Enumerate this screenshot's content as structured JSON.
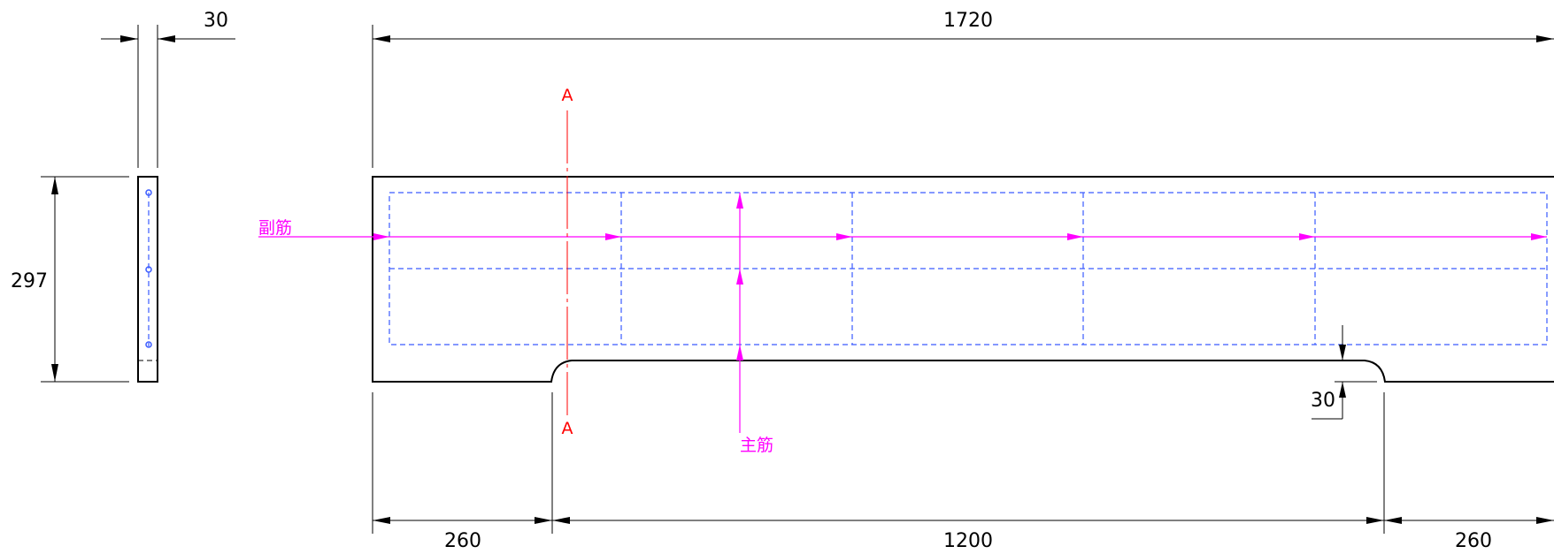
{
  "dimensions": {
    "overall_length": "1720",
    "height": "297",
    "thickness": "30",
    "left_end": "260",
    "middle_span": "1200",
    "right_end": "260",
    "notch_depth": "30"
  },
  "labels": {
    "secondary_rebar": "副筋",
    "main_rebar": "主筋",
    "section_top": "A",
    "section_bottom": "A"
  },
  "colors": {
    "outline": "#000000",
    "rebar": "#3a5bff",
    "rebar_label": "#ff00ff",
    "section_line": "#ff0000"
  }
}
